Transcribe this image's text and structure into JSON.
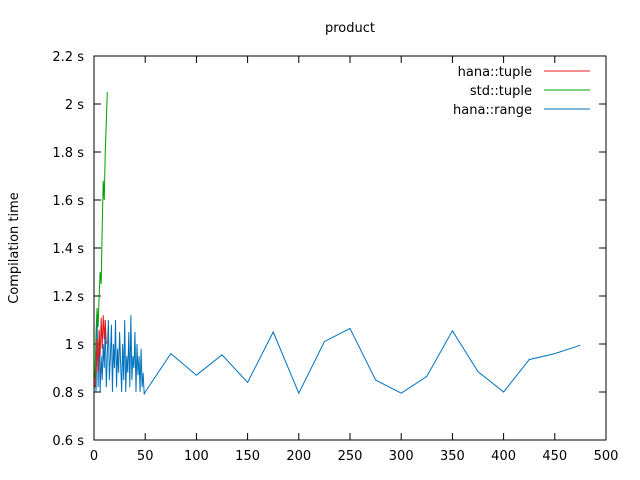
{
  "chart_data": {
    "type": "line",
    "title": "product",
    "xlabel": "",
    "ylabel": "Compilation time",
    "xlim": [
      0,
      500
    ],
    "ylim": [
      0.6,
      2.2
    ],
    "x_ticks": [
      0,
      50,
      100,
      150,
      200,
      250,
      300,
      350,
      400,
      450,
      500
    ],
    "x_tick_labels": [
      "0",
      "50",
      "100",
      "150",
      "200",
      "250",
      "300",
      "350",
      "400",
      "450",
      "500"
    ],
    "y_ticks": [
      0.6,
      0.8,
      1.0,
      1.2,
      1.4,
      1.6,
      1.8,
      2.0,
      2.2
    ],
    "y_tick_labels": [
      "0.6 s",
      "0.8 s",
      "1 s",
      "1.2 s",
      "1.4 s",
      "1.6 s",
      "1.8 s",
      "2 s",
      "2.2 s"
    ],
    "grid": false,
    "legend_position": "top-right",
    "series": [
      {
        "name": "hana::tuple",
        "color": "#e41a1c",
        "x": [
          1,
          2,
          3,
          4,
          5,
          6,
          7,
          8,
          9,
          10,
          11,
          12
        ],
        "y": [
          0.82,
          0.9,
          1.02,
          0.88,
          1.06,
          0.95,
          1.11,
          0.98,
          1.12,
          1.02,
          1.1,
          1.0
        ]
      },
      {
        "name": "std::tuple",
        "color": "#00a000",
        "x": [
          1,
          2,
          3,
          4,
          5,
          6,
          7,
          8,
          9,
          10,
          11,
          12,
          13
        ],
        "y": [
          0.86,
          1.05,
          1.15,
          1.07,
          1.2,
          1.3,
          1.25,
          1.48,
          1.68,
          1.6,
          1.8,
          1.92,
          2.05
        ]
      },
      {
        "name": "hana::range",
        "color": "#0072bd",
        "x": [
          1,
          2,
          3,
          4,
          5,
          6,
          7,
          8,
          9,
          10,
          11,
          12,
          13,
          14,
          15,
          16,
          17,
          18,
          19,
          20,
          21,
          22,
          23,
          24,
          25,
          26,
          27,
          28,
          29,
          30,
          31,
          32,
          33,
          34,
          35,
          36,
          37,
          38,
          39,
          40,
          41,
          42,
          43,
          44,
          45,
          46,
          47,
          48,
          49,
          50,
          75,
          100,
          125,
          150,
          175,
          200,
          225,
          250,
          275,
          300,
          325,
          350,
          375,
          400,
          425,
          450,
          475
        ],
        "y": [
          0.87,
          0.8,
          1.1,
          0.82,
          1.05,
          0.8,
          0.95,
          0.85,
          1.0,
          0.9,
          1.1,
          0.82,
          0.95,
          1.1,
          0.85,
          0.95,
          1.08,
          0.8,
          1.0,
          0.9,
          1.1,
          0.82,
          0.98,
          0.88,
          1.05,
          0.92,
          0.8,
          1.0,
          0.85,
          1.1,
          0.8,
          0.95,
          0.88,
          1.05,
          0.82,
          1.12,
          0.85,
          0.95,
          0.9,
          1.05,
          0.8,
          1.0,
          0.87,
          0.95,
          0.8,
          0.98,
          0.82,
          0.88,
          0.79,
          0.8,
          0.96,
          0.87,
          0.955,
          0.84,
          1.05,
          0.795,
          1.01,
          1.065,
          0.85,
          0.795,
          0.865,
          1.055,
          0.885,
          0.8,
          0.935,
          0.96,
          0.995
        ]
      }
    ]
  }
}
